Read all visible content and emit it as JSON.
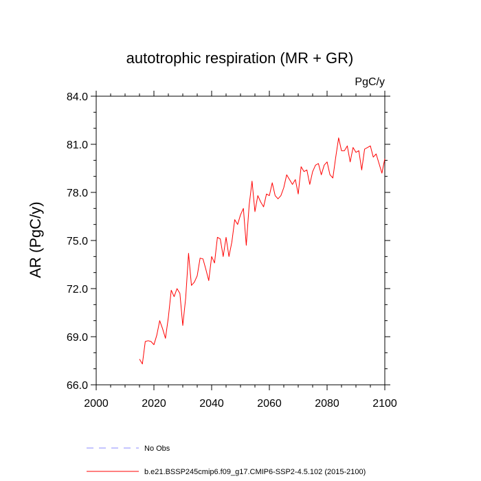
{
  "chart_data": {
    "type": "line",
    "title": "autotrophic respiration (MR + GR)",
    "units": "PgC/y",
    "ylabel": "AR  (PgC/y)",
    "xlabel": "",
    "xlim": [
      2000,
      2100
    ],
    "ylim": [
      66.0,
      84.0
    ],
    "x_ticks": [
      2000,
      2020,
      2040,
      2060,
      2080,
      2100
    ],
    "x_tick_labels": [
      "2000",
      "2020",
      "2040",
      "2060",
      "2080",
      "2100"
    ],
    "y_ticks": [
      66.0,
      69.0,
      72.0,
      75.0,
      78.0,
      81.0,
      84.0
    ],
    "y_tick_labels": [
      "66.0",
      "69.0",
      "72.0",
      "75.0",
      "78.0",
      "81.0",
      "84.0"
    ],
    "grid": false,
    "legend_position": "bottom",
    "series": [
      {
        "name": "b.e21.BSSP245cmip6.f09_g17.CMIP6-SSP2-4.5.102 (2015-2100)",
        "color": "#ff0000",
        "style": "solid",
        "x": [
          2015,
          2016,
          2017,
          2018,
          2019,
          2020,
          2021,
          2022,
          2023,
          2024,
          2025,
          2026,
          2027,
          2028,
          2029,
          2030,
          2031,
          2032,
          2033,
          2034,
          2035,
          2036,
          2037,
          2038,
          2039,
          2040,
          2041,
          2042,
          2043,
          2044,
          2045,
          2046,
          2047,
          2048,
          2049,
          2050,
          2051,
          2052,
          2053,
          2054,
          2055,
          2056,
          2057,
          2058,
          2059,
          2060,
          2061,
          2062,
          2063,
          2064,
          2065,
          2066,
          2067,
          2068,
          2069,
          2070,
          2071,
          2072,
          2073,
          2074,
          2075,
          2076,
          2077,
          2078,
          2079,
          2080,
          2081,
          2082,
          2083,
          2084,
          2085,
          2086,
          2087,
          2088,
          2089,
          2090,
          2091,
          2092,
          2093,
          2094,
          2095,
          2096,
          2097,
          2098,
          2099,
          2100
        ],
        "values": [
          67.6,
          67.3,
          68.7,
          68.75,
          68.7,
          68.5,
          69.1,
          70.0,
          69.5,
          68.9,
          70.2,
          71.9,
          71.5,
          72.0,
          71.7,
          69.7,
          71.4,
          74.2,
          72.2,
          72.4,
          72.8,
          73.9,
          73.85,
          73.2,
          72.5,
          74.0,
          73.6,
          75.2,
          75.1,
          74.0,
          75.2,
          74.0,
          74.9,
          76.3,
          76.0,
          76.6,
          77.0,
          74.7,
          77.2,
          78.7,
          76.8,
          77.8,
          77.4,
          77.1,
          77.9,
          77.8,
          78.6,
          77.8,
          77.6,
          77.8,
          78.3,
          79.1,
          78.8,
          78.5,
          78.8,
          77.9,
          79.6,
          79.3,
          79.4,
          78.5,
          79.3,
          79.7,
          79.8,
          79.1,
          79.7,
          79.9,
          79.1,
          78.9,
          80.2,
          81.4,
          80.6,
          80.6,
          80.9,
          79.9,
          80.8,
          80.5,
          80.6,
          79.4,
          80.7,
          80.8,
          80.9,
          80.2,
          80.4,
          79.8,
          79.2,
          80.1
        ]
      }
    ],
    "legend": [
      {
        "label": "No Obs",
        "color": "#8a8aff",
        "style": "dashed"
      },
      {
        "label": "b.e21.BSSP245cmip6.f09_g17.CMIP6-SSP2-4.5.102 (2015-2100)",
        "color": "#ff0000",
        "style": "solid"
      }
    ]
  }
}
